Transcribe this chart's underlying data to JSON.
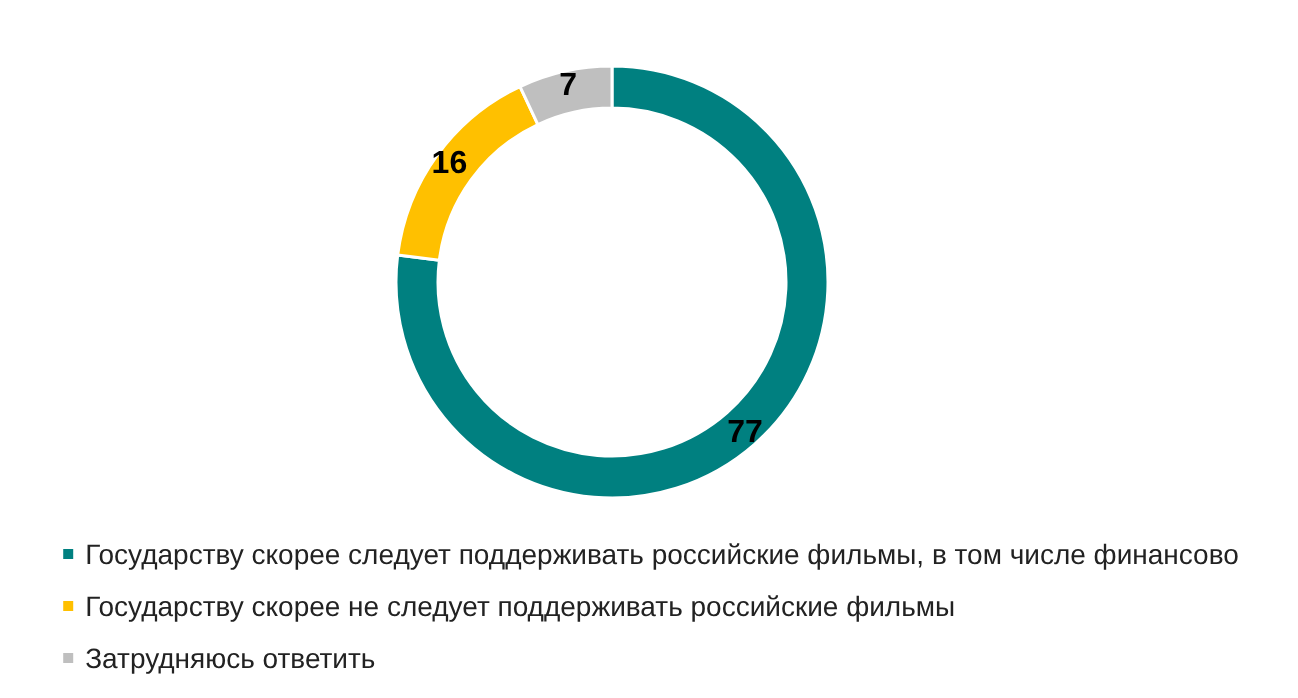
{
  "chart_data": {
    "type": "donut",
    "categories": [
      "Государству скорее следует поддерживать российские фильмы, в том числе финансово",
      "Государству скорее не следует поддерживать российские фильмы",
      "Затрудняюсь ответить"
    ],
    "values": [
      77,
      16,
      7
    ],
    "colors": [
      "#008080",
      "#ffc000",
      "#bfbfbf"
    ],
    "data_labels": true,
    "legend": "bottom"
  }
}
